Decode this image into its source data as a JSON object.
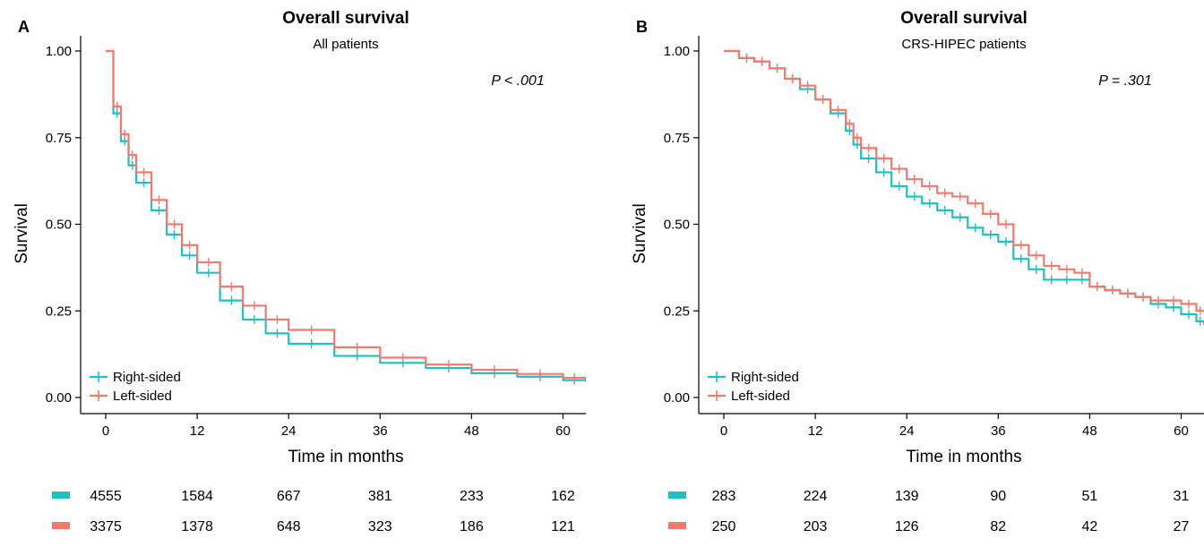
{
  "colors": {
    "right": "#1FBFC3",
    "left": "#F07A6E"
  },
  "chart_data": [
    {
      "panel_letter": "A",
      "type": "line",
      "title": "Overall survival",
      "subtitle": "All patients",
      "pvalue": "P < .001",
      "xlabel": "Time in months",
      "ylabel": "Survival",
      "xlim": [
        0,
        63
      ],
      "ylim": [
        0,
        1
      ],
      "xticks": [
        0,
        12,
        24,
        36,
        48,
        60
      ],
      "yticks": [
        "0.00",
        "0.25",
        "0.50",
        "0.75",
        "1.00"
      ],
      "grid": false,
      "legend_position": "bottom-left",
      "series": [
        {
          "name": "Right-sided",
          "color": "#1FBFC3",
          "x": [
            0,
            1,
            2,
            3,
            4,
            6,
            8,
            10,
            12,
            15,
            18,
            21,
            24,
            30,
            36,
            42,
            48,
            54,
            60,
            63
          ],
          "y": [
            1.0,
            0.82,
            0.74,
            0.67,
            0.62,
            0.54,
            0.47,
            0.41,
            0.36,
            0.28,
            0.225,
            0.185,
            0.155,
            0.12,
            0.1,
            0.085,
            0.07,
            0.06,
            0.05,
            0.045
          ]
        },
        {
          "name": "Left-sided",
          "color": "#F07A6E",
          "x": [
            0,
            1,
            2,
            3,
            4,
            6,
            8,
            10,
            12,
            15,
            18,
            21,
            24,
            30,
            36,
            42,
            48,
            54,
            60,
            63
          ],
          "y": [
            1.0,
            0.84,
            0.76,
            0.7,
            0.65,
            0.57,
            0.5,
            0.44,
            0.39,
            0.32,
            0.265,
            0.225,
            0.195,
            0.145,
            0.115,
            0.095,
            0.08,
            0.068,
            0.057,
            0.052
          ]
        }
      ],
      "risk_table": {
        "times": [
          0,
          12,
          24,
          36,
          48,
          60
        ],
        "right": [
          "4555",
          "1584",
          "667",
          "381",
          "233",
          "162"
        ],
        "left": [
          "3375",
          "1378",
          "648",
          "323",
          "186",
          "121"
        ]
      }
    },
    {
      "panel_letter": "B",
      "type": "line",
      "title": "Overall survival",
      "subtitle": "CRS-HIPEC patients",
      "pvalue": "P  =  .301",
      "xlabel": "Time in months",
      "ylabel": "Survival",
      "xlim": [
        0,
        63
      ],
      "ylim": [
        0,
        1
      ],
      "xticks": [
        0,
        12,
        24,
        36,
        48,
        60
      ],
      "yticks": [
        "0.00",
        "0.25",
        "0.50",
        "0.75",
        "1.00"
      ],
      "grid": false,
      "legend_position": "bottom-left",
      "series": [
        {
          "name": "Right-sided",
          "color": "#1FBFC3",
          "x": [
            0,
            2,
            4,
            6,
            8,
            10,
            12,
            14,
            16,
            17,
            18,
            20,
            22,
            24,
            26,
            28,
            30,
            32,
            34,
            36,
            38,
            40,
            42,
            44,
            46,
            48,
            50,
            52,
            54,
            56,
            58,
            60,
            62,
            63
          ],
          "y": [
            1.0,
            0.98,
            0.97,
            0.95,
            0.92,
            0.89,
            0.86,
            0.82,
            0.77,
            0.73,
            0.69,
            0.65,
            0.61,
            0.58,
            0.56,
            0.54,
            0.52,
            0.49,
            0.47,
            0.45,
            0.4,
            0.37,
            0.34,
            0.34,
            0.34,
            0.32,
            0.31,
            0.3,
            0.29,
            0.27,
            0.26,
            0.24,
            0.22,
            0.21
          ]
        },
        {
          "name": "Left-sided",
          "color": "#F07A6E",
          "x": [
            0,
            2,
            4,
            6,
            8,
            10,
            12,
            14,
            16,
            17,
            18,
            20,
            22,
            24,
            26,
            28,
            30,
            32,
            34,
            36,
            38,
            40,
            42,
            44,
            46,
            48,
            50,
            52,
            54,
            56,
            58,
            60,
            62,
            63
          ],
          "y": [
            1.0,
            0.98,
            0.97,
            0.95,
            0.92,
            0.9,
            0.86,
            0.83,
            0.79,
            0.75,
            0.72,
            0.69,
            0.66,
            0.63,
            0.61,
            0.59,
            0.58,
            0.56,
            0.53,
            0.5,
            0.44,
            0.41,
            0.38,
            0.37,
            0.36,
            0.32,
            0.31,
            0.3,
            0.29,
            0.28,
            0.28,
            0.27,
            0.25,
            0.25
          ]
        }
      ],
      "risk_table": {
        "times": [
          0,
          12,
          24,
          36,
          48,
          60
        ],
        "right": [
          "283",
          "224",
          "139",
          "90",
          "51",
          "31"
        ],
        "left": [
          "250",
          "203",
          "126",
          "82",
          "42",
          "27"
        ]
      }
    }
  ]
}
